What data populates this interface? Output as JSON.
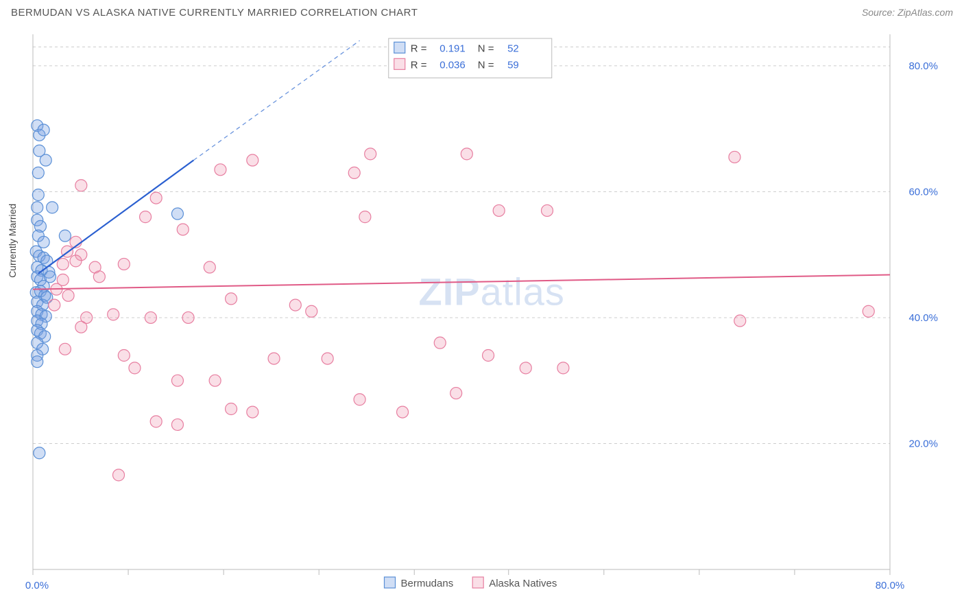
{
  "title": "BERMUDAN VS ALASKA NATIVE CURRENTLY MARRIED CORRELATION CHART",
  "source": "Source: ZipAtlas.com",
  "ylabel": "Currently Married",
  "watermark": {
    "bold": "ZIP",
    "rest": "atlas"
  },
  "chart": {
    "type": "scatter",
    "xlim": [
      0,
      80
    ],
    "ylim": [
      0,
      85
    ],
    "yticks": [
      20,
      40,
      60,
      80
    ],
    "ytick_labels": [
      "20.0%",
      "40.0%",
      "60.0%",
      "80.0%"
    ],
    "xtick_labels": {
      "start": "0.0%",
      "end": "80.0%"
    },
    "xtick_positions": [
      0,
      8.9,
      17.8,
      26.7,
      35.6,
      44.4,
      53.3,
      62.2,
      71.1,
      80
    ],
    "background": "#ffffff",
    "grid_color": "#cccccc",
    "axis_color": "#bbbbbb",
    "series": [
      {
        "name": "Bermudans",
        "marker_fill": "rgba(120,160,225,0.35)",
        "marker_stroke": "#5a8fd6",
        "marker_r": 8.5,
        "line_color": "#2a5fd0",
        "line_width": 2.2,
        "line_dash_color": "#6a94dd",
        "R": "0.191",
        "N": "52",
        "trend_solid": {
          "x1": 0.5,
          "y1": 47,
          "x2": 15,
          "y2": 65
        },
        "trend_dash": {
          "x1": 15,
          "y1": 65,
          "x2": 30.5,
          "y2": 84
        },
        "points": [
          [
            0.4,
            70.5
          ],
          [
            0.6,
            69
          ],
          [
            1.0,
            69.8
          ],
          [
            0.6,
            66.5
          ],
          [
            1.2,
            65
          ],
          [
            0.5,
            63
          ],
          [
            0.5,
            59.5
          ],
          [
            0.4,
            57.5
          ],
          [
            1.8,
            57.5
          ],
          [
            0.4,
            55.5
          ],
          [
            0.7,
            54.5
          ],
          [
            0.5,
            53
          ],
          [
            1.0,
            52
          ],
          [
            3.0,
            53
          ],
          [
            0.3,
            50.5
          ],
          [
            0.6,
            49.8
          ],
          [
            1.0,
            49.5
          ],
          [
            1.3,
            49
          ],
          [
            0.4,
            48
          ],
          [
            0.8,
            47.5
          ],
          [
            1.5,
            47.2
          ],
          [
            0.4,
            46.5
          ],
          [
            0.7,
            46
          ],
          [
            1.0,
            45
          ],
          [
            1.6,
            46.5
          ],
          [
            0.3,
            44
          ],
          [
            0.7,
            44.2
          ],
          [
            1.1,
            43.5
          ],
          [
            0.4,
            42.5
          ],
          [
            0.9,
            42
          ],
          [
            1.3,
            43.2
          ],
          [
            0.4,
            41
          ],
          [
            0.8,
            40.5
          ],
          [
            1.2,
            40.2
          ],
          [
            0.4,
            39.5
          ],
          [
            0.8,
            39
          ],
          [
            0.4,
            38
          ],
          [
            0.7,
            37.5
          ],
          [
            1.1,
            37
          ],
          [
            0.4,
            36
          ],
          [
            0.9,
            35
          ],
          [
            0.4,
            34
          ],
          [
            0.4,
            33
          ],
          [
            13.5,
            56.5
          ],
          [
            0.6,
            18.5
          ]
        ]
      },
      {
        "name": "Alaska Natives",
        "marker_fill": "rgba(240,150,175,0.30)",
        "marker_stroke": "#e77ea0",
        "marker_r": 8.5,
        "line_color": "#e05a86",
        "line_width": 2,
        "R": "0.036",
        "N": "59",
        "trend_solid": {
          "x1": 0,
          "y1": 44.5,
          "x2": 80,
          "y2": 46.8
        },
        "points": [
          [
            4.5,
            61
          ],
          [
            4.0,
            52
          ],
          [
            10.5,
            56
          ],
          [
            11.5,
            59
          ],
          [
            3.2,
            50.5
          ],
          [
            4.5,
            50
          ],
          [
            2.8,
            48.5
          ],
          [
            4.0,
            49
          ],
          [
            5.8,
            48
          ],
          [
            8.5,
            48.5
          ],
          [
            6.2,
            46.5
          ],
          [
            2.8,
            46
          ],
          [
            2.2,
            44.5
          ],
          [
            3.3,
            43.5
          ],
          [
            2.0,
            42
          ],
          [
            5.0,
            40
          ],
          [
            7.5,
            40.5
          ],
          [
            11.0,
            40
          ],
          [
            14.5,
            40
          ],
          [
            4.5,
            38.5
          ],
          [
            3.0,
            35
          ],
          [
            8.5,
            34
          ],
          [
            9.5,
            32
          ],
          [
            13.5,
            30
          ],
          [
            11.5,
            23.5
          ],
          [
            13.5,
            23
          ],
          [
            17.5,
            63.5
          ],
          [
            20.5,
            65
          ],
          [
            14.0,
            54
          ],
          [
            16.5,
            48
          ],
          [
            18.5,
            43
          ],
          [
            22.5,
            33.5
          ],
          [
            18.5,
            25.5
          ],
          [
            20.5,
            25
          ],
          [
            17.0,
            30
          ],
          [
            24.5,
            42
          ],
          [
            26.0,
            41
          ],
          [
            27.5,
            33.5
          ],
          [
            30.0,
            63
          ],
          [
            30.5,
            27
          ],
          [
            31.0,
            56
          ],
          [
            34.5,
            25
          ],
          [
            38.0,
            36
          ],
          [
            42.5,
            34
          ],
          [
            31.5,
            66
          ],
          [
            40.5,
            66
          ],
          [
            43.5,
            57
          ],
          [
            46.0,
            32
          ],
          [
            48.0,
            57
          ],
          [
            49.5,
            32
          ],
          [
            39.5,
            28
          ],
          [
            65.5,
            65.5
          ],
          [
            66.0,
            39.5
          ],
          [
            78.0,
            41
          ],
          [
            8.0,
            15
          ]
        ]
      }
    ],
    "legend_top": {
      "R_label": "R =",
      "N_label": "N ="
    },
    "legend_bottom": [
      {
        "label": "Bermudans",
        "fill": "rgba(120,160,225,0.35)",
        "stroke": "#5a8fd6"
      },
      {
        "label": "Alaska Natives",
        "fill": "rgba(240,150,175,0.30)",
        "stroke": "#e77ea0"
      }
    ]
  }
}
